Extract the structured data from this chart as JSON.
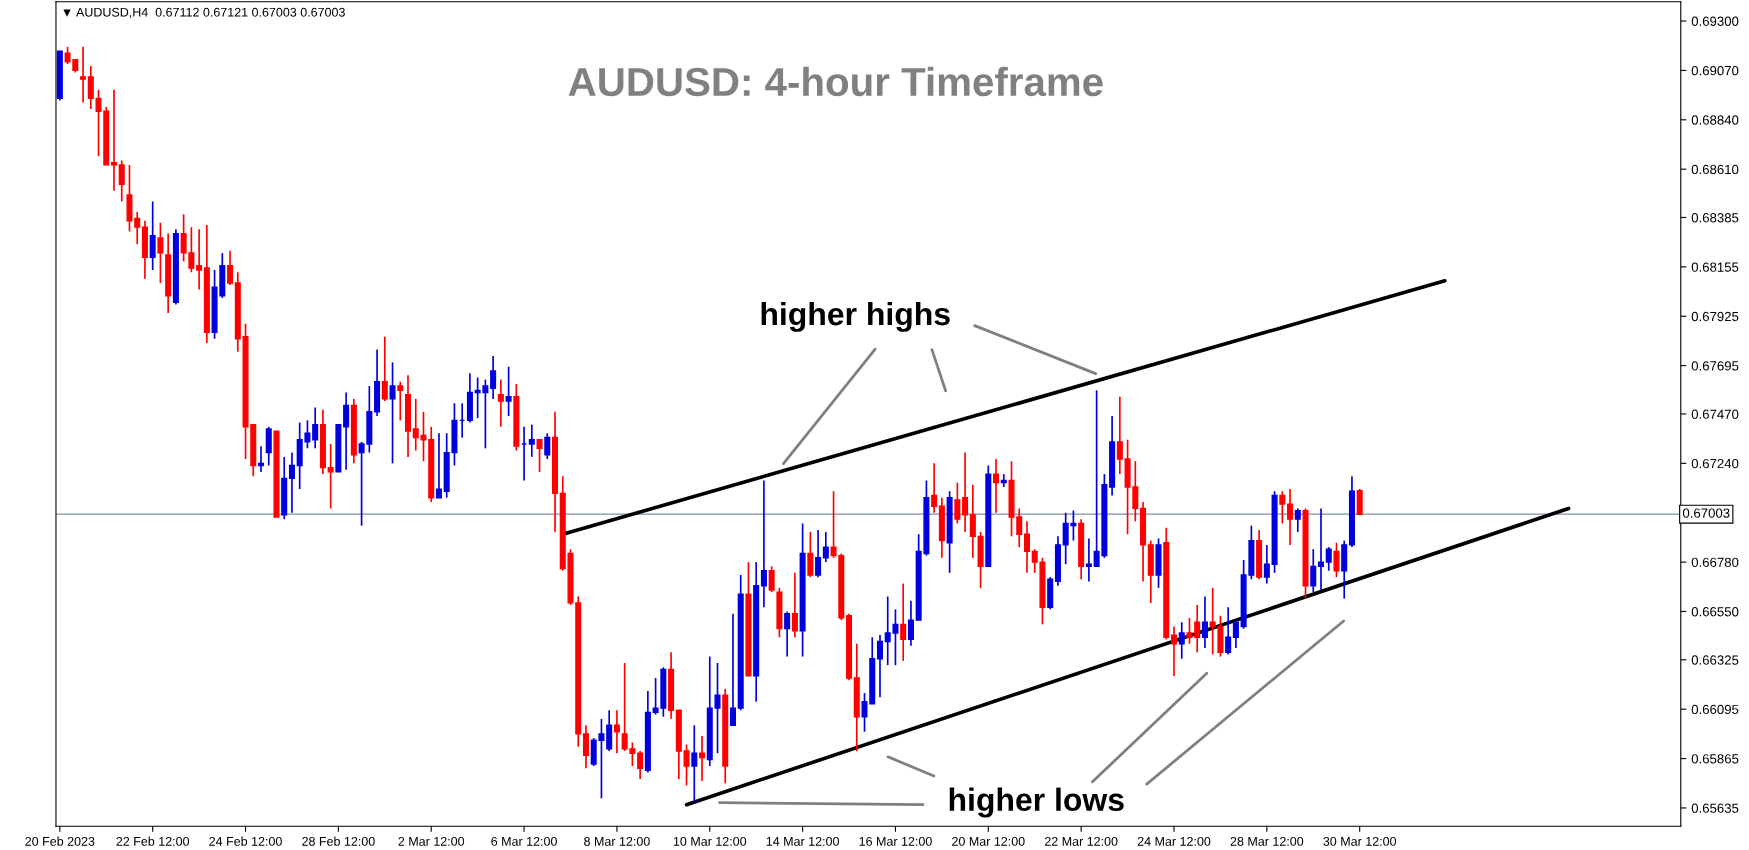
{
  "chart_data": {
    "type": "candlestick",
    "title": "AUDUSD: 4-hour Timeframe",
    "categories": [
      "20 Feb 2023",
      null,
      null,
      null,
      null,
      null,
      null,
      null,
      null,
      null,
      null,
      null,
      "22 Feb 12:00",
      null,
      null,
      null,
      null,
      null,
      null,
      null,
      null,
      null,
      null,
      null,
      "24 Feb 12:00",
      null,
      null,
      null,
      null,
      null,
      null,
      null,
      null,
      null,
      null,
      null,
      "28 Feb 12:00",
      null,
      null,
      null,
      null,
      null,
      null,
      null,
      null,
      null,
      null,
      null,
      "2 Mar 12:00",
      null,
      null,
      null,
      null,
      null,
      null,
      null,
      null,
      null,
      null,
      null,
      "6 Mar 12:00",
      null,
      null,
      null,
      null,
      null,
      null,
      null,
      null,
      null,
      null,
      null,
      "8 Mar 12:00",
      null,
      null,
      null,
      null,
      null,
      null,
      null,
      null,
      null,
      null,
      null,
      "10 Mar 12:00",
      null,
      null,
      null,
      null,
      null,
      null,
      null,
      null,
      null,
      null,
      null,
      "14 Mar 12:00",
      null,
      null,
      null,
      null,
      null,
      null,
      null,
      null,
      null,
      null,
      null,
      "16 Mar 12:00",
      null,
      null,
      null,
      null,
      null,
      null,
      null,
      null,
      null,
      null,
      null,
      "20 Mar 12:00",
      null,
      null,
      null,
      null,
      null,
      null,
      null,
      null,
      null,
      null,
      null,
      "22 Mar 12:00",
      null,
      null,
      null,
      null,
      null,
      null,
      null,
      null,
      null,
      null,
      null,
      "24 Mar 12:00",
      null,
      null,
      null,
      null,
      null,
      null,
      null,
      null,
      null,
      null,
      null,
      "28 Mar 12:00",
      null,
      null,
      null,
      null,
      null,
      null,
      null,
      null,
      null,
      null,
      null,
      "30 Mar 12:00",
      null,
      null,
      null,
      null,
      null,
      null,
      null,
      null,
      null,
      null,
      null,
      null,
      null,
      null,
      null,
      null,
      null,
      null,
      null,
      null,
      null,
      null,
      null,
      null,
      null,
      null,
      null,
      null,
      null,
      null,
      null,
      null,
      null,
      null,
      null,
      null,
      null,
      null,
      null,
      null,
      null
    ],
    "colors": [
      "#0000dd",
      "#ff0000",
      "#ff0000",
      "#ff0000",
      "#ff0000",
      "#ff0000",
      "#ff0000",
      "#ff0000",
      "#ff0000",
      "#ff0000",
      "#ff0000",
      "#ff0000",
      "#0000dd",
      "#ff0000",
      "#ff0000",
      "#0000dd",
      "#ff0000",
      "#ff0000",
      "#ff0000",
      "#ff0000",
      "#0000dd",
      "#0000dd",
      "#ff0000",
      "#ff0000",
      "#ff0000",
      "#ff0000",
      "#0000dd",
      "#0000dd",
      "#ff0000",
      "#0000dd",
      "#0000dd",
      "#0000dd",
      "#0000dd",
      "#0000dd",
      "#ff0000",
      "#ff0000",
      "#0000dd",
      "#0000dd",
      "#ff0000",
      "#0000dd",
      "#0000dd",
      "#0000dd",
      "#ff0000",
      "#0000dd",
      "#ff0000",
      "#ff0000",
      "#ff0000",
      "#ff0000",
      "#ff0000",
      "#0000dd",
      "#0000dd",
      "#0000dd",
      "#0000dd",
      "#0000dd",
      "#0000dd",
      "#0000dd",
      "#0000dd",
      "#ff0000",
      "#0000dd",
      "#ff0000",
      "#0000dd",
      "#0000dd",
      "#ff0000",
      "#0000dd",
      "#ff0000",
      "#ff0000",
      "#ff0000",
      "#ff0000",
      "#ff0000",
      "#0000dd",
      "#0000dd",
      "#0000dd",
      "#ff0000",
      "#ff0000",
      "#ff0000",
      "#ff0000",
      "#0000dd",
      "#0000dd",
      "#0000dd",
      "#ff0000",
      "#ff0000",
      "#ff0000",
      "#0000dd",
      "#ff0000",
      "#0000dd",
      "#0000dd",
      "#ff0000",
      "#0000dd",
      "#0000dd",
      "#ff0000",
      "#0000dd",
      "#0000dd",
      "#ff0000",
      "#ff0000",
      "#0000dd",
      "#ff0000",
      "#0000dd",
      "#ff0000",
      "#0000dd",
      "#0000dd",
      "#ff0000",
      "#ff0000",
      "#ff0000",
      "#ff0000",
      "#0000dd",
      "#0000dd",
      "#0000dd",
      "#0000dd",
      "#0000dd",
      "#ff0000",
      "#0000dd",
      "#0000dd",
      "#0000dd",
      "#ff0000",
      "#ff0000",
      "#0000dd",
      "#ff0000",
      "#ff0000",
      "#ff0000",
      "#ff0000",
      "#0000dd",
      "#ff0000",
      "#0000dd",
      "#ff0000",
      "#ff0000",
      "#ff0000",
      "#ff0000",
      "#ff0000",
      "#0000dd",
      "#0000dd",
      "#0000dd",
      "#0000dd",
      "#ff0000",
      "#0000dd",
      "#0000dd",
      "#0000dd",
      "#0000dd",
      "#ff0000",
      "#ff0000",
      "#ff0000",
      "#ff0000",
      "#ff0000",
      "#0000dd",
      "#ff0000",
      "#ff0000",
      "#0000dd",
      "#ff0000",
      "#ff0000",
      "#0000dd",
      "#ff0000",
      "#ff0000",
      "#0000dd",
      "#0000dd",
      "#0000dd",
      "#0000dd",
      "#ff0000",
      "#0000dd",
      "#0000dd",
      "#ff0000",
      "#ff0000",
      "#0000dd",
      "#ff0000",
      "#0000dd",
      "#0000dd",
      "#0000dd",
      "#ff0000",
      "#0000dd",
      "#0000dd",
      "#ff0000",
      null,
      null,
      null,
      null,
      null,
      null,
      null,
      null,
      null,
      null,
      null,
      null,
      null,
      null,
      null,
      null,
      null,
      null,
      null,
      null,
      null,
      null,
      null,
      null,
      null,
      null,
      null,
      null,
      null,
      null,
      null,
      null,
      null,
      null,
      null,
      null,
      null,
      null,
      null,
      null,
      null
    ],
    "ohlc": [
      [
        0.6894,
        0.6916,
        0.6893,
        0.6916
      ],
      [
        0.6915,
        0.6918,
        0.691,
        0.6911
      ],
      [
        0.6912,
        0.6912,
        0.6906,
        0.6907
      ],
      [
        0.6904,
        0.6918,
        0.6892,
        0.6903
      ],
      [
        0.6904,
        0.6909,
        0.6889,
        0.6894
      ],
      [
        0.6894,
        0.6898,
        0.6867,
        0.6888
      ],
      [
        0.6888,
        0.689,
        0.6863,
        0.6863
      ],
      [
        0.6864,
        0.6898,
        0.6851,
        0.6863
      ],
      [
        0.6863,
        0.6865,
        0.6846,
        0.6854
      ],
      [
        0.6849,
        0.6863,
        0.6832,
        0.6837
      ],
      [
        0.6838,
        0.6841,
        0.6826,
        0.6834
      ],
      [
        0.6834,
        0.6837,
        0.681,
        0.682
      ],
      [
        0.682,
        0.6846,
        0.6814,
        0.683
      ],
      [
        0.6829,
        0.6836,
        0.6808,
        0.6822
      ],
      [
        0.6821,
        0.6831,
        0.6794,
        0.6802
      ],
      [
        0.6799,
        0.6833,
        0.6798,
        0.6831
      ],
      [
        0.6831,
        0.684,
        0.6818,
        0.6822
      ],
      [
        0.6822,
        0.6834,
        0.6813,
        0.6815
      ],
      [
        0.6816,
        0.6833,
        0.6805,
        0.6814
      ],
      [
        0.6815,
        0.6835,
        0.678,
        0.6785
      ],
      [
        0.6785,
        0.6814,
        0.6782,
        0.6806
      ],
      [
        0.6802,
        0.6822,
        0.6801,
        0.6816
      ],
      [
        0.6816,
        0.6823,
        0.6807,
        0.6808
      ],
      [
        0.6808,
        0.6813,
        0.6776,
        0.6782
      ],
      [
        0.6783,
        0.6789,
        0.6726,
        0.6741
      ],
      [
        0.6742,
        0.6742,
        0.6718,
        0.6723
      ],
      [
        0.6723,
        0.6732,
        0.672,
        0.6724
      ],
      [
        0.6729,
        0.6741,
        0.6723,
        0.674
      ],
      [
        0.6739,
        0.6739,
        0.6699,
        0.6699
      ],
      [
        0.67,
        0.6727,
        0.6698,
        0.6717
      ],
      [
        0.6717,
        0.6729,
        0.6701,
        0.6723
      ],
      [
        0.6723,
        0.6743,
        0.6712,
        0.6735
      ],
      [
        0.6734,
        0.6744,
        0.6731,
        0.6738
      ],
      [
        0.6735,
        0.675,
        0.6731,
        0.6742
      ],
      [
        0.6742,
        0.6749,
        0.6719,
        0.6722
      ],
      [
        0.6722,
        0.6733,
        0.6703,
        0.672
      ],
      [
        0.672,
        0.6742,
        0.672,
        0.6742
      ],
      [
        0.6741,
        0.6757,
        0.6721,
        0.6751
      ],
      [
        0.6751,
        0.6754,
        0.6724,
        0.6728
      ],
      [
        0.6729,
        0.6734,
        0.6695,
        0.6733
      ],
      [
        0.6733,
        0.676,
        0.6729,
        0.6748
      ],
      [
        0.6748,
        0.6777,
        0.6746,
        0.6762
      ],
      [
        0.6762,
        0.6783,
        0.6753,
        0.6754
      ],
      [
        0.6754,
        0.6771,
        0.6724,
        0.676
      ],
      [
        0.676,
        0.6762,
        0.6744,
        0.6758
      ],
      [
        0.6756,
        0.6765,
        0.6727,
        0.6739
      ],
      [
        0.674,
        0.6754,
        0.673,
        0.6736
      ],
      [
        0.6737,
        0.6748,
        0.6725,
        0.6735
      ],
      [
        0.6735,
        0.6741,
        0.6706,
        0.6708
      ],
      [
        0.6708,
        0.6738,
        0.6708,
        0.6712
      ],
      [
        0.6711,
        0.6738,
        0.6708,
        0.6729
      ],
      [
        0.6729,
        0.6752,
        0.6723,
        0.6744
      ],
      [
        0.6744,
        0.6752,
        0.6736,
        0.6744
      ],
      [
        0.6744,
        0.6766,
        0.6743,
        0.6757
      ],
      [
        0.6757,
        0.6764,
        0.6745,
        0.6758
      ],
      [
        0.6757,
        0.6763,
        0.6731,
        0.676
      ],
      [
        0.6759,
        0.6774,
        0.6754,
        0.6767
      ],
      [
        0.6756,
        0.6763,
        0.6741,
        0.6753
      ],
      [
        0.6753,
        0.6769,
        0.6746,
        0.6755
      ],
      [
        0.6755,
        0.6761,
        0.673,
        0.6732
      ],
      [
        0.6733,
        0.6741,
        0.6716,
        0.6733
      ],
      [
        0.6733,
        0.6742,
        0.6727,
        0.6735
      ],
      [
        0.6735,
        0.6735,
        0.672,
        0.6731
      ],
      [
        0.6728,
        0.6738,
        0.6726,
        0.6736
      ],
      [
        0.6736,
        0.6748,
        0.6692,
        0.671
      ],
      [
        0.671,
        0.6718,
        0.6674,
        0.6675
      ],
      [
        0.6682,
        0.6684,
        0.6658,
        0.6659
      ],
      [
        0.6659,
        0.6662,
        0.6592,
        0.6598
      ],
      [
        0.6598,
        0.6602,
        0.6582,
        0.6588
      ],
      [
        0.6584,
        0.6596,
        0.6583,
        0.6595
      ],
      [
        0.6595,
        0.6605,
        0.6568,
        0.6598
      ],
      [
        0.6591,
        0.6609,
        0.659,
        0.6602
      ],
      [
        0.6602,
        0.6609,
        0.6589,
        0.6599
      ],
      [
        0.6598,
        0.6631,
        0.659,
        0.6591
      ],
      [
        0.6591,
        0.6594,
        0.6583,
        0.6589
      ],
      [
        0.6589,
        0.659,
        0.6577,
        0.6582
      ],
      [
        0.6581,
        0.6618,
        0.658,
        0.6608
      ],
      [
        0.6608,
        0.6624,
        0.6607,
        0.661
      ],
      [
        0.661,
        0.6629,
        0.6606,
        0.6628
      ],
      [
        0.6628,
        0.6636,
        0.6605,
        0.6609
      ],
      [
        0.6609,
        0.6609,
        0.6577,
        0.659
      ],
      [
        0.659,
        0.6593,
        0.6574,
        0.6583
      ],
      [
        0.6583,
        0.6602,
        0.6566,
        0.6589
      ],
      [
        0.6589,
        0.6597,
        0.6576,
        0.6587
      ],
      [
        0.6586,
        0.6634,
        0.6583,
        0.661
      ],
      [
        0.661,
        0.6631,
        0.6589,
        0.6616
      ],
      [
        0.6616,
        0.6619,
        0.6575,
        0.6583
      ],
      [
        0.6602,
        0.6654,
        0.6602,
        0.661
      ],
      [
        0.661,
        0.6672,
        0.6609,
        0.6663
      ],
      [
        0.6663,
        0.6678,
        0.6625,
        0.6625
      ],
      [
        0.6625,
        0.6678,
        0.6613,
        0.6667
      ],
      [
        0.6667,
        0.6716,
        0.6657,
        0.6674
      ],
      [
        0.6674,
        0.6676,
        0.6664,
        0.6665
      ],
      [
        0.6664,
        0.6666,
        0.6643,
        0.6647
      ],
      [
        0.6647,
        0.6655,
        0.6634,
        0.6654
      ],
      [
        0.6654,
        0.6673,
        0.6643,
        0.6646
      ],
      [
        0.6646,
        0.6696,
        0.6634,
        0.6682
      ],
      [
        0.6682,
        0.6692,
        0.6671,
        0.6672
      ],
      [
        0.6672,
        0.6693,
        0.6671,
        0.668
      ],
      [
        0.668,
        0.6692,
        0.6678,
        0.6685
      ],
      [
        0.6685,
        0.6711,
        0.668,
        0.6681
      ],
      [
        0.6681,
        0.6682,
        0.6651,
        0.6652
      ],
      [
        0.6653,
        0.6654,
        0.6623,
        0.6624
      ],
      [
        0.6624,
        0.664,
        0.659,
        0.6606
      ],
      [
        0.6606,
        0.6617,
        0.6599,
        0.6613
      ],
      [
        0.6612,
        0.6643,
        0.6612,
        0.6633
      ],
      [
        0.6633,
        0.6644,
        0.6615,
        0.6641
      ],
      [
        0.6641,
        0.6662,
        0.663,
        0.6645
      ],
      [
        0.6645,
        0.6656,
        0.663,
        0.6649
      ],
      [
        0.6649,
        0.6668,
        0.6632,
        0.6642
      ],
      [
        0.6642,
        0.666,
        0.6639,
        0.6651
      ],
      [
        0.6651,
        0.6691,
        0.6651,
        0.6683
      ],
      [
        0.6682,
        0.6716,
        0.6681,
        0.6708
      ],
      [
        0.6709,
        0.6724,
        0.6701,
        0.6704
      ],
      [
        0.6704,
        0.6708,
        0.668,
        0.6688
      ],
      [
        0.6687,
        0.6711,
        0.6673,
        0.6708
      ],
      [
        0.6707,
        0.6715,
        0.6696,
        0.6698
      ],
      [
        0.6708,
        0.6729,
        0.6692,
        0.67
      ],
      [
        0.67,
        0.6714,
        0.668,
        0.669
      ],
      [
        0.669,
        0.6692,
        0.6666,
        0.6676
      ],
      [
        0.6676,
        0.6723,
        0.6676,
        0.6719
      ],
      [
        0.6719,
        0.6726,
        0.6701,
        0.6715
      ],
      [
        0.6715,
        0.6719,
        0.6713,
        0.6716
      ],
      [
        0.6716,
        0.6725,
        0.669,
        0.6699
      ],
      [
        0.6699,
        0.6703,
        0.6685,
        0.6691
      ],
      [
        0.6691,
        0.6697,
        0.6673,
        0.6683
      ],
      [
        0.6683,
        0.6684,
        0.6673,
        0.6678
      ],
      [
        0.6678,
        0.668,
        0.6649,
        0.6657
      ],
      [
        0.6657,
        0.6671,
        0.6656,
        0.667
      ],
      [
        0.6669,
        0.669,
        0.6667,
        0.6686
      ],
      [
        0.6686,
        0.6701,
        0.6677,
        0.6696
      ],
      [
        0.6695,
        0.6702,
        0.6688,
        0.6696
      ],
      [
        0.6696,
        0.6698,
        0.667,
        0.6676
      ],
      [
        0.6676,
        0.6689,
        0.6669,
        0.6677
      ],
      [
        0.6676,
        0.6758,
        0.6676,
        0.6683
      ],
      [
        0.6681,
        0.6719,
        0.668,
        0.6714
      ],
      [
        0.6713,
        0.6746,
        0.6709,
        0.6734
      ],
      [
        0.6734,
        0.6755,
        0.6719,
        0.6726
      ],
      [
        0.6726,
        0.6735,
        0.6691,
        0.6713
      ],
      [
        0.6713,
        0.6725,
        0.6697,
        0.6703
      ],
      [
        0.6703,
        0.6706,
        0.6669,
        0.6686
      ],
      [
        0.6686,
        0.6688,
        0.6659,
        0.6672
      ],
      [
        0.6672,
        0.6689,
        0.6666,
        0.6686
      ],
      [
        0.6687,
        0.6694,
        0.6642,
        0.6643
      ],
      [
        0.6644,
        0.6648,
        0.6625,
        0.664
      ],
      [
        0.664,
        0.665,
        0.6633,
        0.6645
      ],
      [
        0.6645,
        0.6652,
        0.664,
        0.6643
      ],
      [
        0.665,
        0.6658,
        0.6636,
        0.6643
      ],
      [
        0.6643,
        0.6662,
        0.6638,
        0.665
      ],
      [
        0.665,
        0.6666,
        0.6635,
        0.6648
      ],
      [
        0.6648,
        0.6653,
        0.6634,
        0.6636
      ],
      [
        0.6636,
        0.6657,
        0.6635,
        0.6643
      ],
      [
        0.6643,
        0.6651,
        0.6638,
        0.665
      ],
      [
        0.6648,
        0.6679,
        0.6647,
        0.6672
      ],
      [
        0.6672,
        0.6695,
        0.667,
        0.6688
      ],
      [
        0.6688,
        0.6693,
        0.667,
        0.6671
      ],
      [
        0.6671,
        0.6686,
        0.6668,
        0.6677
      ],
      [
        0.6677,
        0.6711,
        0.6673,
        0.6709
      ],
      [
        0.6709,
        0.6711,
        0.6696,
        0.6705
      ],
      [
        0.6705,
        0.6712,
        0.6686,
        0.6698
      ],
      [
        0.6698,
        0.6703,
        0.6692,
        0.6702
      ],
      [
        0.6702,
        0.6703,
        0.6661,
        0.6667
      ],
      [
        0.6667,
        0.6684,
        0.6664,
        0.6676
      ],
      [
        0.6676,
        0.6703,
        0.6665,
        0.6678
      ],
      [
        0.6678,
        0.6685,
        0.6674,
        0.6684
      ],
      [
        0.6683,
        0.6687,
        0.6671,
        0.6674
      ],
      [
        0.6674,
        0.6688,
        0.6661,
        0.6686
      ],
      [
        0.6686,
        0.6718,
        0.6685,
        0.6711
      ],
      [
        0.67112,
        0.67121,
        0.67003,
        0.67003
      ],
      null,
      null,
      null,
      null,
      null,
      null,
      null,
      null,
      null,
      null,
      null,
      null,
      null,
      null,
      null,
      null,
      null,
      null,
      null,
      null,
      null,
      null,
      null,
      null,
      null,
      null,
      null,
      null,
      null,
      null,
      null,
      null,
      null,
      null,
      null,
      null,
      null,
      null,
      null,
      null,
      null
    ],
    "series": [
      {
        "type": "line",
        "color": "#000000",
        "line_style": "solid",
        "values": [
          null,
          null,
          null,
          null,
          null,
          null,
          null,
          null,
          null,
          null,
          null,
          null,
          null,
          null,
          null,
          null,
          null,
          null,
          null,
          null,
          null,
          null,
          null,
          null,
          null,
          null,
          null,
          null,
          null,
          null,
          null,
          null,
          null,
          null,
          null,
          null,
          null,
          null,
          null,
          null,
          null,
          null,
          null,
          null,
          null,
          null,
          null,
          null,
          null,
          null,
          null,
          null,
          null,
          null,
          null,
          null,
          null,
          null,
          null,
          null,
          null,
          null,
          null,
          null,
          null,
          0.6691,
          null,
          null,
          null,
          null,
          null,
          null,
          null,
          null,
          null,
          null,
          null,
          null,
          null,
          null,
          null,
          null,
          null,
          null,
          null,
          null,
          null,
          null,
          null,
          null,
          null,
          null,
          null,
          null,
          null,
          null,
          null,
          null,
          null,
          null,
          null,
          null,
          null,
          null,
          null,
          null,
          null,
          null,
          null,
          null,
          null,
          null,
          null,
          null,
          null,
          null,
          null,
          null,
          null,
          null,
          null,
          null,
          null,
          null,
          null,
          null,
          null,
          null,
          null,
          null,
          null,
          null,
          null,
          null,
          null,
          null,
          null,
          null,
          null,
          null,
          null,
          null,
          null,
          null,
          null,
          null,
          null,
          null,
          null,
          null,
          null,
          null,
          null,
          null,
          null,
          null,
          null,
          null,
          null,
          null,
          null,
          null,
          null,
          null,
          null,
          null,
          null,
          null,
          null,
          null,
          null,
          null,
          null,
          null,
          null,
          null,
          null,
          null,
          null,
          0.6809,
          null,
          null,
          null,
          null,
          null,
          null,
          null,
          null,
          null,
          null,
          null,
          null,
          null,
          null,
          null,
          null,
          null,
          null,
          null,
          null,
          null,
          null,
          null,
          null,
          null,
          null,
          null,
          null,
          null,
          null
        ]
      },
      {
        "type": "line",
        "color": "#000000",
        "line_style": "solid",
        "values": [
          null,
          null,
          null,
          null,
          null,
          null,
          null,
          null,
          null,
          null,
          null,
          null,
          null,
          null,
          null,
          null,
          null,
          null,
          null,
          null,
          null,
          null,
          null,
          null,
          null,
          null,
          null,
          null,
          null,
          null,
          null,
          null,
          null,
          null,
          null,
          null,
          null,
          null,
          null,
          null,
          null,
          null,
          null,
          null,
          null,
          null,
          null,
          null,
          null,
          null,
          null,
          null,
          null,
          null,
          null,
          null,
          null,
          null,
          null,
          null,
          null,
          null,
          null,
          null,
          null,
          null,
          null,
          null,
          null,
          null,
          null,
          null,
          null,
          null,
          null,
          null,
          null,
          null,
          null,
          null,
          null,
          0.6565,
          null,
          null,
          null,
          null,
          null,
          null,
          null,
          null,
          null,
          null,
          null,
          null,
          null,
          null,
          null,
          null,
          null,
          null,
          null,
          null,
          null,
          null,
          null,
          null,
          null,
          null,
          null,
          null,
          null,
          null,
          null,
          null,
          null,
          null,
          null,
          null,
          null,
          null,
          null,
          null,
          null,
          null,
          null,
          null,
          null,
          null,
          null,
          null,
          null,
          null,
          null,
          null,
          null,
          null,
          null,
          null,
          null,
          null,
          null,
          null,
          null,
          null,
          null,
          null,
          null,
          null,
          null,
          null,
          null,
          null,
          null,
          null,
          null,
          null,
          null,
          null,
          null,
          null,
          null,
          null,
          null,
          null,
          null,
          null,
          null,
          null,
          null,
          null,
          null,
          null,
          null,
          null,
          null,
          null,
          null,
          null,
          null,
          null,
          null,
          null,
          null,
          null,
          null,
          null,
          null,
          null,
          null,
          null,
          null,
          null,
          null,
          null,
          null,
          0.6703,
          null,
          null,
          null,
          null,
          null,
          null,
          null,
          null,
          null,
          null,
          null,
          null,
          null,
          null
        ]
      }
    ],
    "ylim": [
      0.6555,
      0.6939
    ],
    "yticks": [
      {
        "value": 0.693,
        "label": "0.69300"
      },
      {
        "value": 0.6907,
        "label": "0.69070"
      },
      {
        "value": 0.6884,
        "label": "0.68840"
      },
      {
        "value": 0.6861,
        "label": "0.68610"
      },
      {
        "value": 0.68385,
        "label": "0.68385"
      },
      {
        "value": 0.68155,
        "label": "0.68155"
      },
      {
        "value": 0.67925,
        "label": "0.67925"
      },
      {
        "value": 0.67695,
        "label": "0.67695"
      },
      {
        "value": 0.6747,
        "label": "0.67470"
      },
      {
        "value": 0.6724,
        "label": "0.67240"
      },
      {
        "value": 0.6678,
        "label": "0.66780"
      },
      {
        "value": 0.6655,
        "label": "0.66550"
      },
      {
        "value": 0.66325,
        "label": "0.66325"
      },
      {
        "value": 0.66095,
        "label": "0.66095"
      },
      {
        "value": 0.65865,
        "label": "0.65865"
      },
      {
        "value": 0.65635,
        "label": "0.65635"
      }
    ],
    "ref_lines": [
      {
        "axis": "y",
        "value": 0.67003,
        "label": "0.67003",
        "color": "#8090a8"
      }
    ],
    "annotations": [
      "▼ AUDUSD,H4  0.67112 0.67121 0.67003 0.67003",
      "higher highs",
      "higher lows"
    ]
  }
}
